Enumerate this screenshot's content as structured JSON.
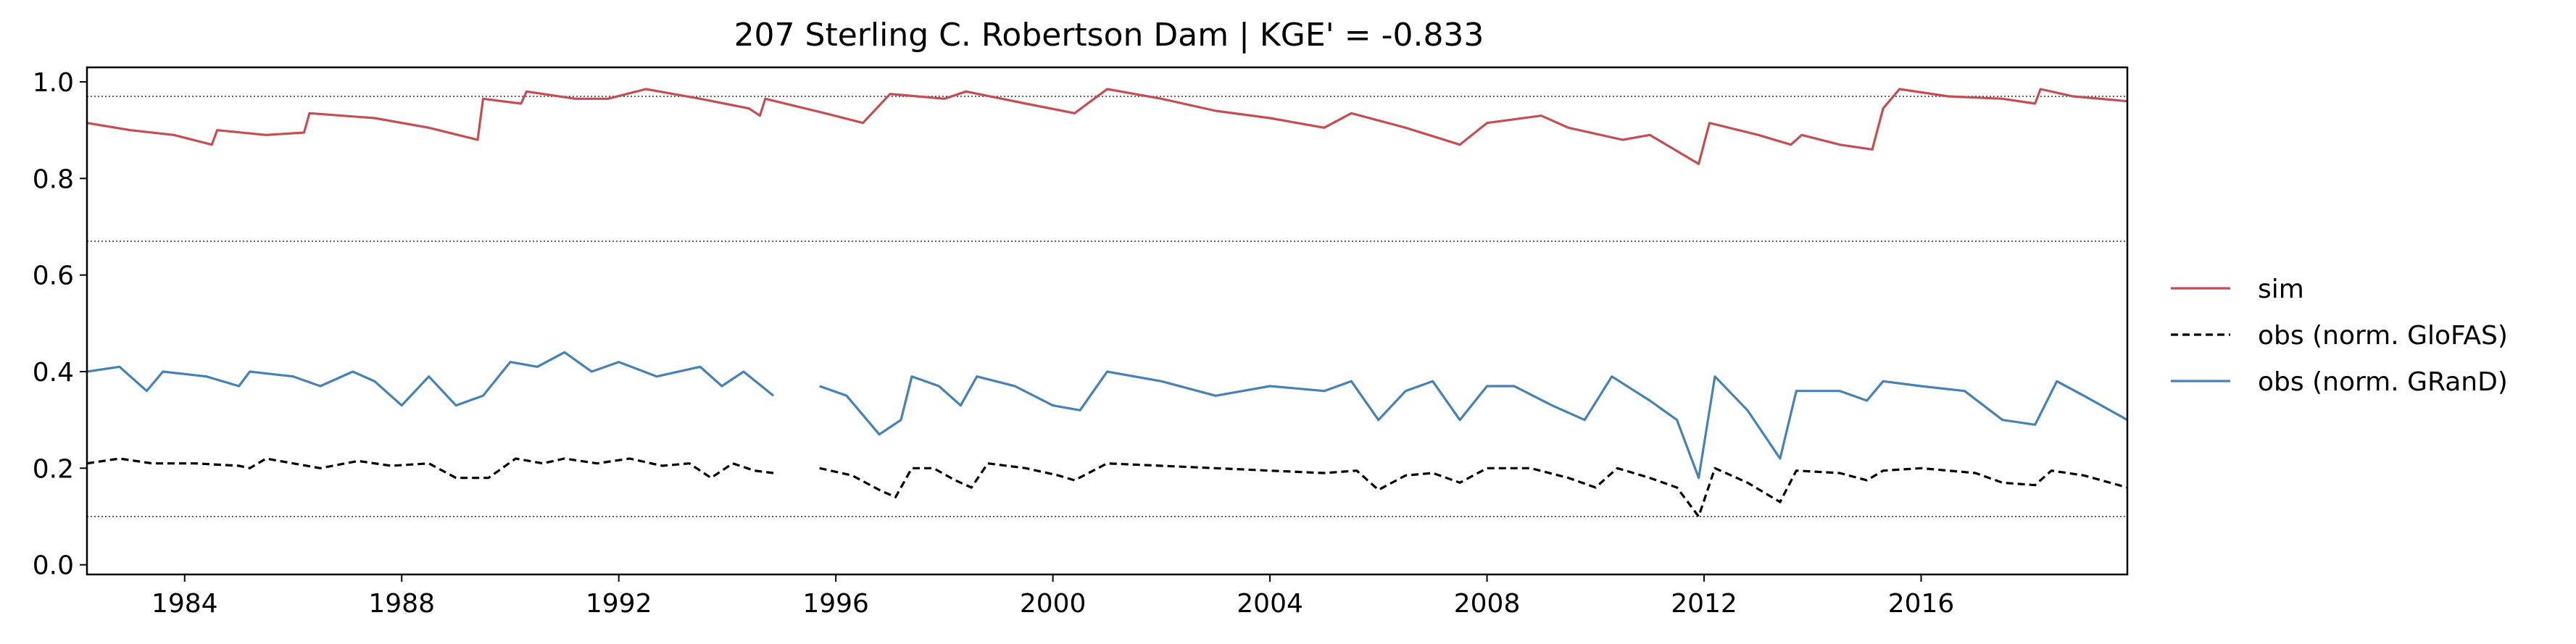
{
  "chart_data": {
    "type": "line",
    "title": "207  Sterling C. Robertson Dam | KGE' = -0.833",
    "xlabel": "",
    "ylabel": "",
    "xlim": [
      1982.2,
      2019.8
    ],
    "ylim": [
      -0.02,
      1.03
    ],
    "x_ticks": [
      "1984",
      "1988",
      "1992",
      "1996",
      "2000",
      "2004",
      "2008",
      "2012",
      "2016"
    ],
    "y_ticks": [
      "0.0",
      "0.2",
      "0.4",
      "0.6",
      "0.8",
      "1.0"
    ],
    "reference_lines": [
      0.1,
      0.67,
      0.97
    ],
    "grid": false,
    "legend_position": "right",
    "series": [
      {
        "name": "sim",
        "color": "#c44e52",
        "style": "solid",
        "points": [
          [
            1982.2,
            0.915
          ],
          [
            1983.0,
            0.9
          ],
          [
            1983.8,
            0.89
          ],
          [
            1984.5,
            0.87
          ],
          [
            1984.6,
            0.9
          ],
          [
            1985.5,
            0.89
          ],
          [
            1986.2,
            0.895
          ],
          [
            1986.3,
            0.935
          ],
          [
            1987.5,
            0.925
          ],
          [
            1988.5,
            0.905
          ],
          [
            1989.4,
            0.88
          ],
          [
            1989.5,
            0.965
          ],
          [
            1990.2,
            0.955
          ],
          [
            1990.3,
            0.98
          ],
          [
            1991.2,
            0.965
          ],
          [
            1991.8,
            0.965
          ],
          [
            1992.5,
            0.985
          ],
          [
            1993.5,
            0.965
          ],
          [
            1994.4,
            0.945
          ],
          [
            1994.6,
            0.93
          ],
          [
            1994.7,
            0.965
          ],
          [
            1995.8,
            0.935
          ],
          [
            1996.5,
            0.915
          ],
          [
            1997.0,
            0.975
          ],
          [
            1998.0,
            0.965
          ],
          [
            1998.4,
            0.98
          ],
          [
            1999.5,
            0.955
          ],
          [
            2000.4,
            0.935
          ],
          [
            2001.0,
            0.985
          ],
          [
            2002.0,
            0.965
          ],
          [
            2003.0,
            0.94
          ],
          [
            2004.0,
            0.925
          ],
          [
            2005.0,
            0.905
          ],
          [
            2005.5,
            0.935
          ],
          [
            2006.5,
            0.905
          ],
          [
            2007.5,
            0.87
          ],
          [
            2008.0,
            0.915
          ],
          [
            2009.0,
            0.93
          ],
          [
            2009.5,
            0.905
          ],
          [
            2010.5,
            0.88
          ],
          [
            2011.0,
            0.89
          ],
          [
            2011.9,
            0.83
          ],
          [
            2012.1,
            0.915
          ],
          [
            2013.0,
            0.89
          ],
          [
            2013.6,
            0.87
          ],
          [
            2013.8,
            0.89
          ],
          [
            2014.5,
            0.87
          ],
          [
            2015.1,
            0.86
          ],
          [
            2015.3,
            0.945
          ],
          [
            2015.6,
            0.985
          ],
          [
            2016.5,
            0.97
          ],
          [
            2017.5,
            0.965
          ],
          [
            2018.1,
            0.955
          ],
          [
            2018.2,
            0.985
          ],
          [
            2018.8,
            0.97
          ],
          [
            2019.8,
            0.96
          ]
        ]
      },
      {
        "name": "obs (norm. GloFAS)",
        "color": "#000000",
        "style": "dashed",
        "segments": [
          [
            [
              1982.2,
              0.21
            ],
            [
              1982.8,
              0.22
            ],
            [
              1983.4,
              0.21
            ],
            [
              1984.2,
              0.21
            ],
            [
              1985.0,
              0.205
            ],
            [
              1985.2,
              0.2
            ],
            [
              1985.5,
              0.22
            ],
            [
              1986.0,
              0.21
            ],
            [
              1986.5,
              0.2
            ],
            [
              1987.2,
              0.215
            ],
            [
              1987.8,
              0.205
            ],
            [
              1988.5,
              0.21
            ],
            [
              1989.0,
              0.18
            ],
            [
              1989.6,
              0.18
            ],
            [
              1990.1,
              0.22
            ],
            [
              1990.6,
              0.21
            ],
            [
              1991.0,
              0.22
            ],
            [
              1991.6,
              0.21
            ],
            [
              1992.2,
              0.22
            ],
            [
              1992.8,
              0.205
            ],
            [
              1993.3,
              0.21
            ],
            [
              1993.7,
              0.18
            ],
            [
              1994.1,
              0.21
            ],
            [
              1994.5,
              0.195
            ],
            [
              1994.85,
              0.19
            ]
          ],
          [
            [
              1995.7,
              0.2
            ],
            [
              1996.3,
              0.185
            ],
            [
              1996.8,
              0.155
            ],
            [
              1997.1,
              0.14
            ],
            [
              1997.4,
              0.2
            ],
            [
              1997.8,
              0.2
            ],
            [
              1998.2,
              0.175
            ],
            [
              1998.5,
              0.16
            ],
            [
              1998.8,
              0.21
            ],
            [
              1999.5,
              0.2
            ],
            [
              2000.1,
              0.185
            ],
            [
              2000.4,
              0.175
            ],
            [
              2001.0,
              0.21
            ],
            [
              2002.0,
              0.205
            ],
            [
              2003.0,
              0.2
            ],
            [
              2004.0,
              0.195
            ],
            [
              2005.0,
              0.19
            ],
            [
              2005.6,
              0.195
            ],
            [
              2006.0,
              0.155
            ],
            [
              2006.5,
              0.185
            ],
            [
              2007.0,
              0.19
            ],
            [
              2007.5,
              0.17
            ],
            [
              2008.0,
              0.2
            ],
            [
              2008.8,
              0.2
            ],
            [
              2009.5,
              0.18
            ],
            [
              2010.0,
              0.16
            ],
            [
              2010.4,
              0.2
            ],
            [
              2011.0,
              0.18
            ],
            [
              2011.5,
              0.16
            ],
            [
              2011.9,
              0.1
            ],
            [
              2012.2,
              0.2
            ],
            [
              2012.8,
              0.17
            ],
            [
              2013.4,
              0.13
            ],
            [
              2013.7,
              0.195
            ],
            [
              2014.5,
              0.19
            ],
            [
              2015.0,
              0.175
            ],
            [
              2015.3,
              0.195
            ],
            [
              2016.0,
              0.2
            ],
            [
              2017.0,
              0.19
            ],
            [
              2017.5,
              0.17
            ],
            [
              2018.1,
              0.165
            ],
            [
              2018.4,
              0.195
            ],
            [
              2019.0,
              0.185
            ],
            [
              2019.8,
              0.16
            ]
          ]
        ]
      },
      {
        "name": "obs (norm. GRanD)",
        "color": "#4682b4",
        "style": "solid",
        "segments": [
          [
            [
              1982.2,
              0.4
            ],
            [
              1982.8,
              0.41
            ],
            [
              1983.3,
              0.36
            ],
            [
              1983.6,
              0.4
            ],
            [
              1984.4,
              0.39
            ],
            [
              1985.0,
              0.37
            ],
            [
              1985.2,
              0.4
            ],
            [
              1986.0,
              0.39
            ],
            [
              1986.5,
              0.37
            ],
            [
              1987.1,
              0.4
            ],
            [
              1987.5,
              0.38
            ],
            [
              1988.0,
              0.33
            ],
            [
              1988.5,
              0.39
            ],
            [
              1989.0,
              0.33
            ],
            [
              1989.5,
              0.35
            ],
            [
              1990.0,
              0.42
            ],
            [
              1990.5,
              0.41
            ],
            [
              1991.0,
              0.44
            ],
            [
              1991.5,
              0.4
            ],
            [
              1992.0,
              0.42
            ],
            [
              1992.7,
              0.39
            ],
            [
              1993.5,
              0.41
            ],
            [
              1993.9,
              0.37
            ],
            [
              1994.3,
              0.4
            ],
            [
              1994.85,
              0.35
            ]
          ],
          [
            [
              1995.7,
              0.37
            ],
            [
              1996.2,
              0.35
            ],
            [
              1996.8,
              0.27
            ],
            [
              1997.2,
              0.3
            ],
            [
              1997.4,
              0.39
            ],
            [
              1997.9,
              0.37
            ],
            [
              1998.3,
              0.33
            ],
            [
              1998.6,
              0.39
            ],
            [
              1999.3,
              0.37
            ],
            [
              2000.0,
              0.33
            ],
            [
              2000.5,
              0.32
            ],
            [
              2001.0,
              0.4
            ],
            [
              2002.0,
              0.38
            ],
            [
              2003.0,
              0.35
            ],
            [
              2004.0,
              0.37
            ],
            [
              2005.0,
              0.36
            ],
            [
              2005.5,
              0.38
            ],
            [
              2006.0,
              0.3
            ],
            [
              2006.5,
              0.36
            ],
            [
              2007.0,
              0.38
            ],
            [
              2007.5,
              0.3
            ],
            [
              2008.0,
              0.37
            ],
            [
              2008.5,
              0.37
            ],
            [
              2009.2,
              0.33
            ],
            [
              2009.8,
              0.3
            ],
            [
              2010.3,
              0.39
            ],
            [
              2011.0,
              0.34
            ],
            [
              2011.5,
              0.3
            ],
            [
              2011.9,
              0.18
            ],
            [
              2012.2,
              0.39
            ],
            [
              2012.8,
              0.32
            ],
            [
              2013.4,
              0.22
            ],
            [
              2013.7,
              0.36
            ],
            [
              2014.5,
              0.36
            ],
            [
              2015.0,
              0.34
            ],
            [
              2015.3,
              0.38
            ],
            [
              2016.0,
              0.37
            ],
            [
              2016.8,
              0.36
            ],
            [
              2017.5,
              0.3
            ],
            [
              2018.1,
              0.29
            ],
            [
              2018.5,
              0.38
            ],
            [
              2019.0,
              0.35
            ],
            [
              2019.8,
              0.3
            ]
          ]
        ]
      }
    ]
  }
}
